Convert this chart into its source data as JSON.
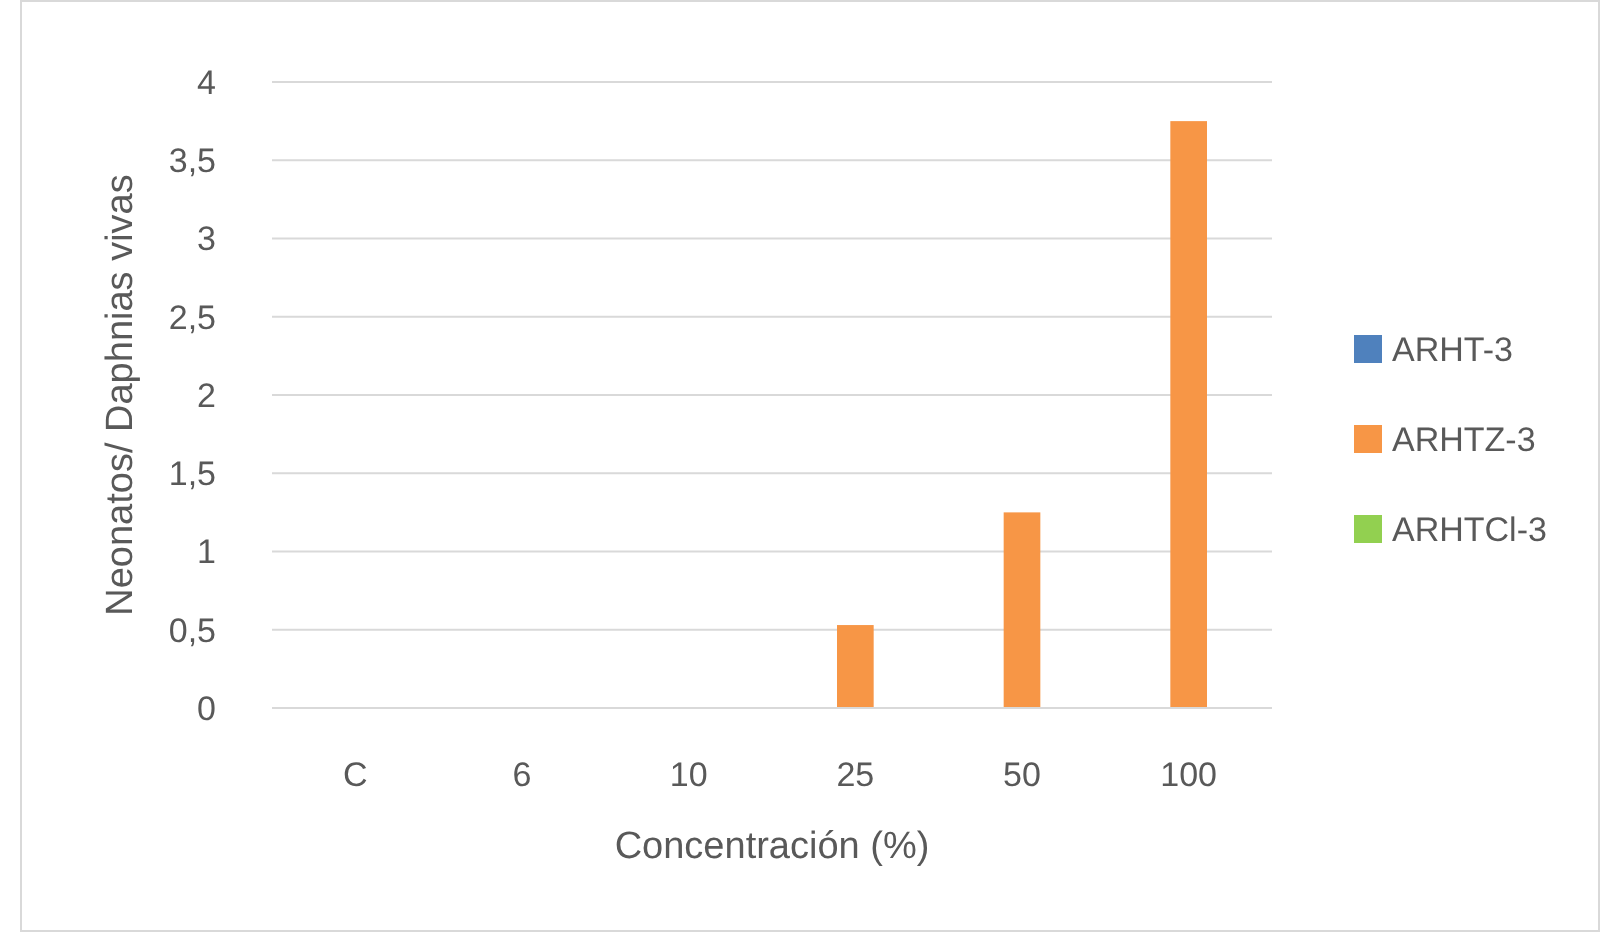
{
  "chart_data": {
    "type": "bar",
    "xlabel": "Concentración (%)",
    "ylabel": "Neonatos/ Daphnias vivas",
    "categories": [
      "C",
      "6",
      "10",
      "25",
      "50",
      "100"
    ],
    "series": [
      {
        "name": "ARHT-3",
        "color": "#4f81bd",
        "values": [
          0,
          0,
          0,
          0,
          0,
          0
        ]
      },
      {
        "name": "ARHTZ-3",
        "color": "#f79646",
        "values": [
          0,
          0,
          0,
          0.53,
          1.25,
          3.75
        ]
      },
      {
        "name": "ARHTCl-3",
        "color": "#92d050",
        "values": [
          0,
          0,
          0,
          0,
          0,
          0
        ]
      }
    ],
    "ylim": [
      0,
      4
    ],
    "yticks": [
      {
        "value": 0,
        "label": "0"
      },
      {
        "value": 0.5,
        "label": "0,5"
      },
      {
        "value": 1,
        "label": "1"
      },
      {
        "value": 1.5,
        "label": "1,5"
      },
      {
        "value": 2,
        "label": "2"
      },
      {
        "value": 2.5,
        "label": "2,5"
      },
      {
        "value": 3,
        "label": "3"
      },
      {
        "value": 3.5,
        "label": "3,5"
      },
      {
        "value": 4,
        "label": "4"
      }
    ],
    "grid": "y",
    "legend": "right"
  }
}
